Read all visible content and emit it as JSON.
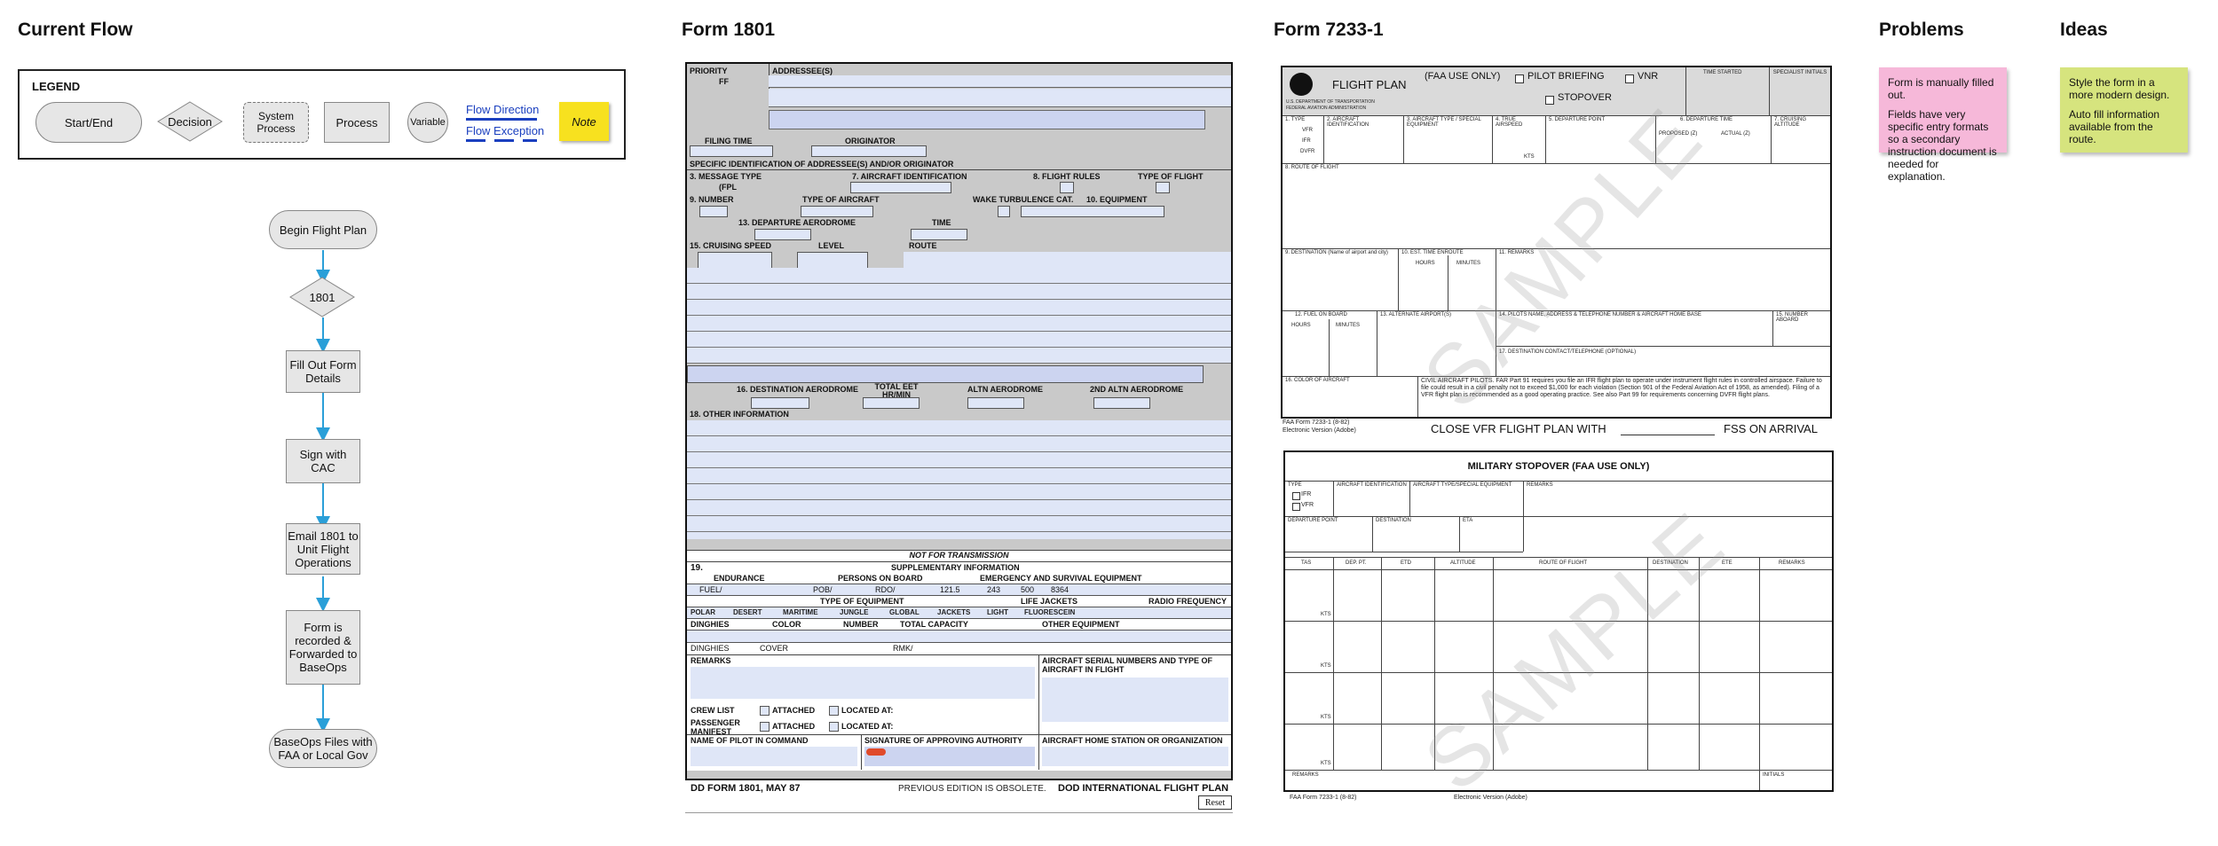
{
  "sections": {
    "current_flow": "Current Flow",
    "form1801": "Form 1801",
    "form7233": "Form 7233-1",
    "problems": "Problems",
    "ideas": "Ideas"
  },
  "legend": {
    "title": "LEGEND",
    "start_end": "Start/End",
    "decision": "Decision",
    "system_process": "System Process",
    "process": "Process",
    "variable": "Variable",
    "flow_direction": "Flow Direction",
    "flow_exception": "Flow Exception",
    "note": "Note"
  },
  "flow": {
    "begin": "Begin Flight Plan",
    "decision": "1801",
    "fill_out": "Fill Out Form Details",
    "sign": "Sign with CAC",
    "email": "Email 1801 to Unit Flight Operations",
    "recorded": "Form is recorded & Forwarded to BaseOps",
    "files": "BaseOps Files with FAA or Local Gov"
  },
  "problems_note": {
    "lines": [
      "Form is manually filled out.",
      "Fields have very specific entry formats so a secondary instruction document is needed for explanation."
    ],
    "color": "#f6b8d9"
  },
  "ideas_note": {
    "lines": [
      "Style the form in a more modern design.",
      "Auto fill information available from the route."
    ],
    "color": "#d6e47e"
  },
  "form1801": {
    "priority": "PRIORITY",
    "addressees": "ADDRESSEE(S)",
    "ff": "FF",
    "filing_time": "FILING TIME",
    "originator": "ORIGINATOR",
    "specific_id": "SPECIFIC IDENTIFICATION OF ADDRESSEE(S) AND/OR ORIGINATOR",
    "message_type": "3. MESSAGE TYPE",
    "fpl": "(FPL",
    "aircraft_id": "7. AIRCRAFT IDENTIFICATION",
    "flight_rules": "8. FLIGHT RULES",
    "type_of_flight": "TYPE OF FLIGHT",
    "number": "9. NUMBER",
    "type_of_aircraft": "TYPE OF AIRCRAFT",
    "wake": "WAKE TURBULENCE CAT.",
    "equipment": "10. EQUIPMENT",
    "departure_aero": "13. DEPARTURE AERODROME",
    "time": "TIME",
    "cruising_speed": "15. CRUISING SPEED",
    "level": "LEVEL",
    "route": "ROUTE",
    "dest_aero": "16. DESTINATION AERODROME",
    "total_eet": "TOTAL EET HR/MIN",
    "altn_aero": "ALTN AERODROME",
    "altn2_aero": "2ND ALTN AERODROME",
    "other_info": "18. OTHER INFORMATION",
    "not_for_transmission": "NOT FOR TRANSMISSION",
    "n19": "19.",
    "supplementary": "SUPPLEMENTARY INFORMATION",
    "endurance": "ENDURANCE",
    "persons": "PERSONS ON BOARD",
    "emergency": "EMERGENCY AND SURVIVAL EQUIPMENT",
    "fuel": "FUEL/",
    "pob": "POB/",
    "rdo": "RDO/",
    "freq1": "121.5",
    "freq2": "243",
    "freq3": "500",
    "freq4": "8364",
    "type_equipment": "TYPE OF EQUIPMENT",
    "life_jackets": "LIFE JACKETS",
    "radio_freq": "RADIO FREQUENCY",
    "polar": "POLAR",
    "desert": "DESERT",
    "maritime": "MARITIME",
    "jungle": "JUNGLE",
    "global": "GLOBAL",
    "jackets": "JACKETS",
    "light": "LIGHT",
    "fluorescein": "FLUORESCEIN",
    "dinghies": "DINGHIES",
    "color": "COLOR",
    "number_lbl": "NUMBER",
    "total_capacity": "TOTAL CAPACITY",
    "other_equipment": "OTHER EQUIPMENT",
    "dinghies2": "DINGHIES",
    "cover": "COVER",
    "rmk": "RMK/",
    "remarks": "REMARKS",
    "aircraft_serial": "AIRCRAFT SERIAL NUMBERS AND TYPE OF AIRCRAFT IN FLIGHT",
    "crew_list": "CREW LIST",
    "attached": "ATTACHED",
    "located_at": "LOCATED AT:",
    "passenger_manifest": "PASSENGER MANIFEST",
    "attached2": "ATTACHED",
    "located_at2": "LOCATED AT:",
    "pilot_name": "NAME OF PILOT IN COMMAND",
    "signature": "SIGNATURE OF APPROVING AUTHORITY",
    "home_station": "AIRCRAFT HOME STATION OR ORGANIZATION",
    "dd_form": "DD FORM 1801, MAY 87",
    "obsolete": "PREVIOUS EDITION IS OBSOLETE.",
    "intl": "DOD INTERNATIONAL FLIGHT PLAN",
    "reset": "Reset"
  },
  "form7233": {
    "flight_plan": "FLIGHT PLAN",
    "faa_use": "(FAA USE ONLY)",
    "pilot_briefing": "PILOT BRIEFING",
    "vnr": "VNR",
    "stopover": "STOPOVER",
    "time_started": "TIME STARTED",
    "specialist": "SPECIALIST INITIALS",
    "dot": "U.S. DEPARTMENT OF TRANSPORTATION FEDERAL AVIATION ADMINISTRATION",
    "type": "1. TYPE",
    "vfr": "VFR",
    "ifr": "IFR",
    "dvfr": "DVFR",
    "aircraft_ident": "2. AIRCRAFT IDENTIFICATION",
    "aircraft_type": "3. AIRCRAFT TYPE / SPECIAL EQUIPMENT",
    "airspeed": "4. TRUE AIRSPEED",
    "kts": "KTS",
    "departure_point": "5. DEPARTURE POINT",
    "departure_time": "6. DEPARTURE TIME",
    "proposed": "PROPOSED (Z)",
    "actual": "ACTUAL (Z)",
    "cruising_alt": "7. CRUISING ALTITUDE",
    "route": "8. ROUTE OF FLIGHT",
    "destination": "9. DESTINATION (Name of airport and city)",
    "est_time": "10. EST. TIME ENROUTE",
    "hours": "HOURS",
    "minutes": "MINUTES",
    "remarks": "11. REMARKS",
    "fuel": "12. FUEL ON BOARD",
    "alternate": "13. ALTERNATE AIRPORT(S)",
    "pilot_info": "14. PILOTS NAME, ADDRESS & TELEPHONE NUMBER & AIRCRAFT HOME BASE",
    "aboard": "15. NUMBER ABOARD",
    "dest_contact": "17. DESTINATION CONTACT/TELEPHONE (OPTIONAL)",
    "color": "16. COLOR OF AIRCRAFT",
    "civil": "CIVIL AIRCRAFT PILOTS. FAR Part 91 requires you file an IFR flight plan to operate under instrument flight rules in controlled airspace. Failure to file could result in a civil penalty not to exceed $1,000 for each violation (Section 901 of the Federal Aviation Act of 1958, as amended). Filing of a VFR flight plan is recommended as a good operating practice. See also Part 99 for requirements concerning DVFR flight plans.",
    "form_no": "FAA Form 7233-1 (8-82)",
    "electronic": "Electronic Version (Adobe)",
    "close_vfr": "CLOSE VFR FLIGHT PLAN WITH",
    "fss": "FSS ON ARRIVAL",
    "sample": "SAMPLE"
  },
  "military": {
    "title": "MILITARY STOPOVER (FAA USE ONLY)",
    "type": "TYPE",
    "ifr": "IFR",
    "vfr": "VFR",
    "aircraft_id": "AIRCRAFT IDENTIFICATION",
    "aircraft_type": "AIRCRAFT TYPE/SPECIAL EQUIPMENT",
    "remarks": "REMARKS",
    "departure": "DEPARTURE POINT",
    "destination": "DESTINATION",
    "eta": "ETA",
    "cols": [
      "TAS",
      "DEP. PT.",
      "ETD",
      "ALTITUDE",
      "ROUTE OF FLIGHT",
      "DESTINATION",
      "ETE",
      "REMARKS"
    ],
    "kts": "KTS",
    "remarks2": "REMARKS",
    "initials": "INITIALS",
    "form_no": "FAA Form 7233-1 (8-82)",
    "electronic": "Electronic Version (Adobe)",
    "sample": "SAMPLE"
  }
}
